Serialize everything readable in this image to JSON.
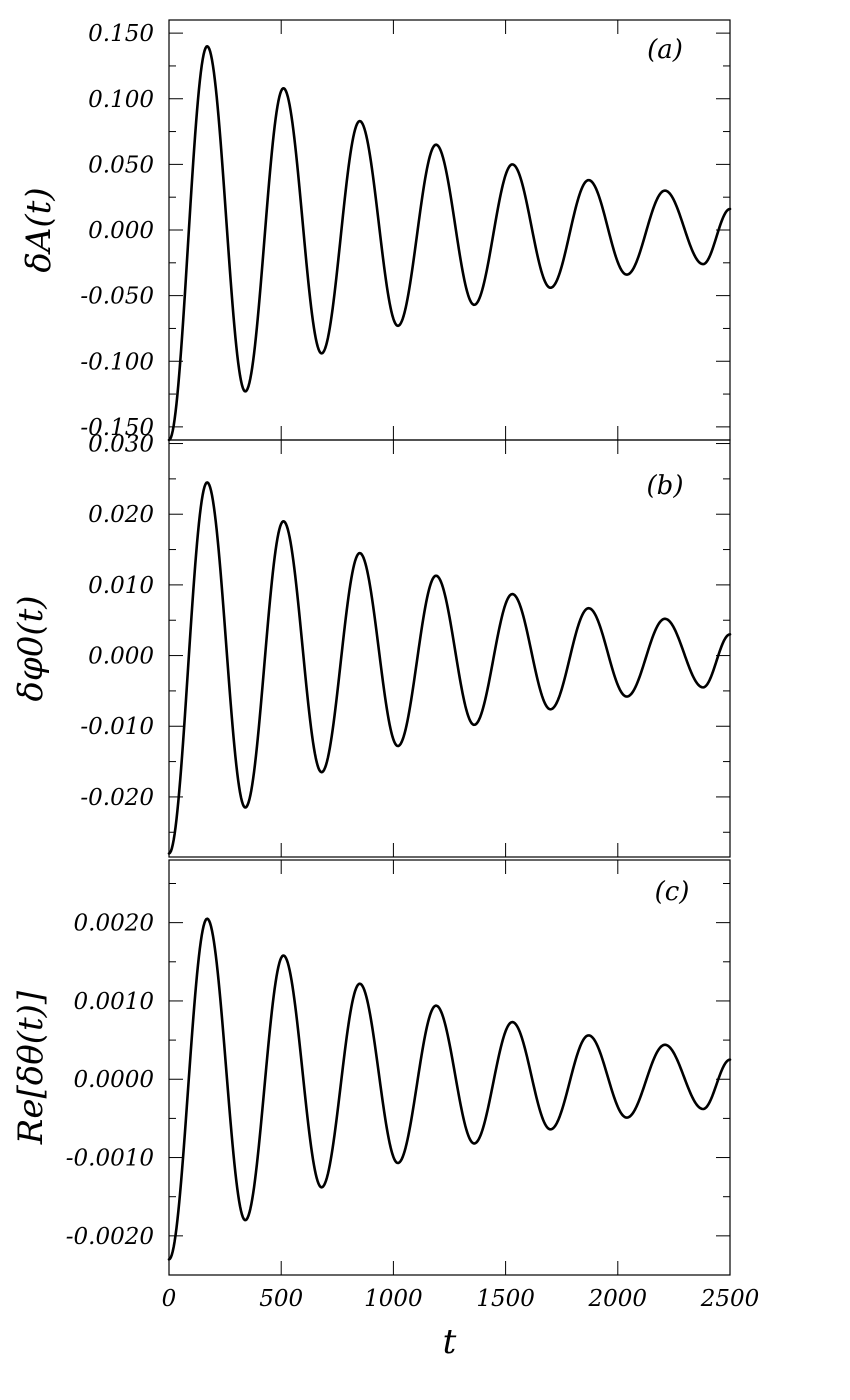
{
  "chart_data": [
    {
      "type": "line",
      "panel_label": "(a)",
      "xlabel": "",
      "ylabel": "δA(t)",
      "xlim": [
        0,
        2500
      ],
      "ylim": [
        -0.16,
        0.16
      ],
      "yticks": [
        -0.15,
        -0.1,
        -0.05,
        0.0,
        0.05,
        0.1,
        0.15
      ],
      "ytick_labels": [
        "-0.150",
        "-0.100",
        "-0.050",
        "0.000",
        "0.050",
        "0.100",
        "0.150"
      ],
      "series": [
        {
          "x": [
            0,
            170,
            340,
            510,
            680,
            850,
            1020,
            1190,
            1360,
            1530,
            1700,
            1870,
            2040,
            2210,
            2380,
            2500
          ],
          "values": [
            -0.16,
            0.14,
            -0.123,
            0.108,
            -0.094,
            0.083,
            -0.073,
            0.065,
            -0.057,
            0.05,
            -0.044,
            0.038,
            -0.034,
            0.03,
            -0.026,
            0.016
          ]
        }
      ]
    },
    {
      "type": "line",
      "panel_label": "(b)",
      "xlabel": "",
      "ylabel": "δφ0(t)",
      "xlim": [
        0,
        2500
      ],
      "ylim": [
        -0.0285,
        0.0305
      ],
      "yticks": [
        -0.02,
        -0.01,
        0.0,
        0.01,
        0.02,
        0.03
      ],
      "ytick_labels": [
        "-0.020",
        "-0.010",
        "0.000",
        "0.010",
        "0.020",
        "0.030"
      ],
      "series": [
        {
          "x": [
            0,
            170,
            340,
            510,
            680,
            850,
            1020,
            1190,
            1360,
            1530,
            1700,
            1870,
            2040,
            2210,
            2380,
            2500
          ],
          "values": [
            -0.028,
            0.0245,
            -0.0215,
            0.019,
            -0.0165,
            0.0145,
            -0.0128,
            0.0113,
            -0.0098,
            0.0087,
            -0.0076,
            0.0067,
            -0.0058,
            0.0052,
            -0.0045,
            0.003
          ]
        }
      ]
    },
    {
      "type": "line",
      "panel_label": "(c)",
      "xlabel": "t",
      "ylabel": "Re[δθ(t)]",
      "xlim": [
        0,
        2500
      ],
      "ylim": [
        -0.0025,
        0.0028
      ],
      "xticks": [
        0,
        500,
        1000,
        1500,
        2000,
        2500
      ],
      "xtick_labels": [
        "0",
        "500",
        "1000",
        "1500",
        "2000",
        "2500"
      ],
      "yticks": [
        -0.002,
        -0.001,
        0.0,
        0.001,
        0.002
      ],
      "ytick_labels": [
        "-0.0020",
        "-0.0010",
        "0.0000",
        "0.0010",
        "0.0020"
      ],
      "series": [
        {
          "x": [
            0,
            170,
            340,
            510,
            680,
            850,
            1020,
            1190,
            1360,
            1530,
            1700,
            1870,
            2040,
            2210,
            2380,
            2500
          ],
          "values": [
            -0.0023,
            0.00205,
            -0.0018,
            0.00158,
            -0.00138,
            0.00122,
            -0.00107,
            0.00094,
            -0.00082,
            0.00073,
            -0.00064,
            0.00056,
            -0.00049,
            0.00044,
            -0.00038,
            0.00025
          ]
        }
      ]
    }
  ]
}
